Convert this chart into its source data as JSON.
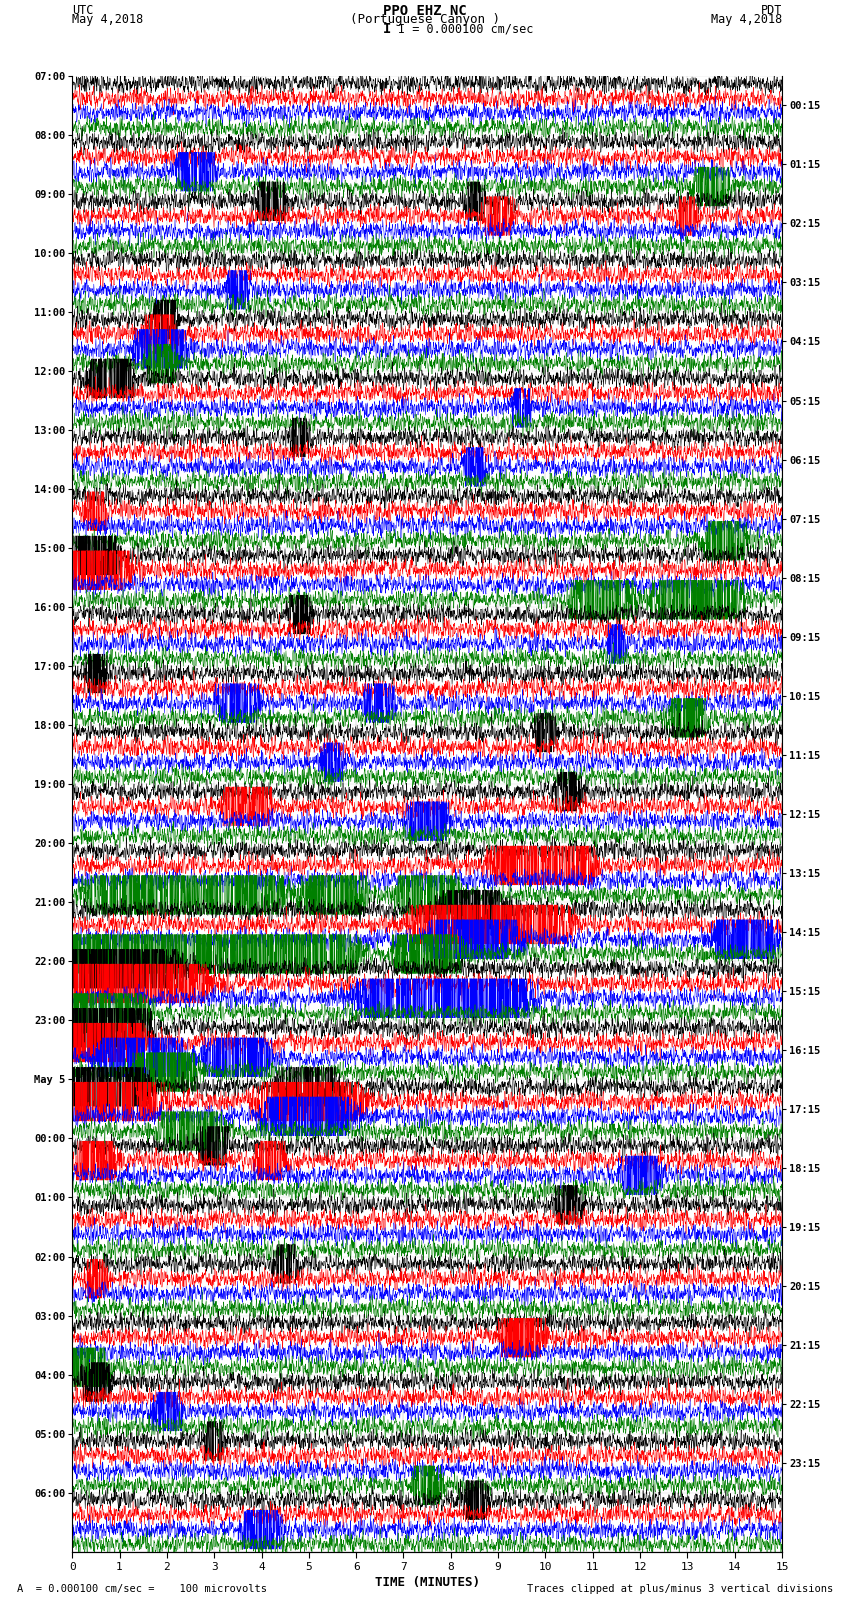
{
  "title_line1": "PPO EHZ NC",
  "title_line2": "(Portuguese Canyon )",
  "title_line3": "I = 0.000100 cm/sec",
  "left_header_line1": "UTC",
  "left_header_line2": "May 4,2018",
  "right_header_line1": "PDT",
  "right_header_line2": "May 4,2018",
  "xlabel": "TIME (MINUTES)",
  "footer_left": "A  = 0.000100 cm/sec =    100 microvolts",
  "footer_right": "Traces clipped at plus/minus 3 vertical divisions",
  "utc_labels": [
    "07:00",
    "08:00",
    "09:00",
    "10:00",
    "11:00",
    "12:00",
    "13:00",
    "14:00",
    "15:00",
    "16:00",
    "17:00",
    "18:00",
    "19:00",
    "20:00",
    "21:00",
    "22:00",
    "23:00",
    "May 5",
    "00:00",
    "01:00",
    "02:00",
    "03:00",
    "04:00",
    "05:00",
    "06:00"
  ],
  "pdt_labels": [
    "00:15",
    "01:15",
    "02:15",
    "03:15",
    "04:15",
    "05:15",
    "06:15",
    "07:15",
    "08:15",
    "09:15",
    "10:15",
    "11:15",
    "12:15",
    "13:15",
    "14:15",
    "15:15",
    "16:15",
    "17:15",
    "18:15",
    "19:15",
    "20:15",
    "21:15",
    "22:15",
    "23:15"
  ],
  "trace_colors": [
    "black",
    "red",
    "blue",
    "green"
  ],
  "n_rows": 25,
  "traces_per_row": 4,
  "xmin": 0,
  "xmax": 15,
  "bg_color": "#ffffff",
  "seed": 42
}
